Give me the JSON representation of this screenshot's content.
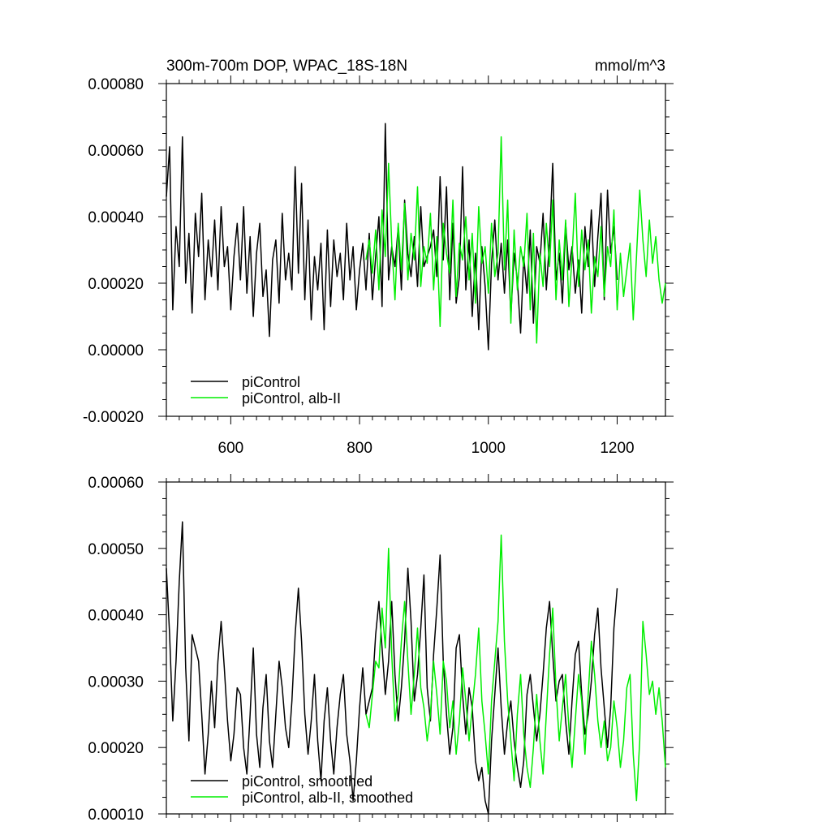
{
  "chart_data": [
    {
      "type": "line",
      "title": "300m-700m DOP, WPAC_18S-18N",
      "units": "mmol/m^3",
      "xlim": [
        500,
        1275
      ],
      "ylim": [
        -0.0002,
        0.0008
      ],
      "xticks": [
        600,
        800,
        1000,
        1200
      ],
      "xtick_labels": [
        "600",
        "800",
        "1000",
        "1200"
      ],
      "yticks": [
        -0.0002,
        0.0,
        0.0002,
        0.0004,
        0.0006,
        0.0008
      ],
      "ytick_labels": [
        "-0.00020",
        "0.00000",
        "0.00020",
        "0.00040",
        "0.00060",
        "0.00080"
      ],
      "legend_position": "bottom-left",
      "grid": false,
      "series": [
        {
          "name": "piControl",
          "color": "#000000",
          "x": [
            500,
            505,
            510,
            515,
            520,
            525,
            530,
            535,
            540,
            545,
            550,
            555,
            560,
            565,
            570,
            575,
            580,
            585,
            590,
            595,
            600,
            605,
            610,
            615,
            620,
            625,
            630,
            635,
            640,
            645,
            650,
            655,
            660,
            665,
            670,
            675,
            680,
            685,
            690,
            695,
            700,
            705,
            710,
            715,
            720,
            725,
            730,
            735,
            740,
            745,
            750,
            755,
            760,
            765,
            770,
            775,
            780,
            785,
            790,
            795,
            800,
            805,
            810,
            815,
            820,
            825,
            830,
            835,
            840,
            845,
            850,
            855,
            860,
            865,
            870,
            875,
            880,
            885,
            890,
            895,
            900,
            905,
            910,
            915,
            920,
            925,
            930,
            935,
            940,
            945,
            950,
            955,
            960,
            965,
            970,
            975,
            980,
            985,
            990,
            995,
            1000,
            1005,
            1010,
            1015,
            1020,
            1025,
            1030,
            1035,
            1040,
            1045,
            1050,
            1055,
            1060,
            1065,
            1070,
            1075,
            1080,
            1085,
            1090,
            1095,
            1100,
            1105,
            1110,
            1115,
            1120,
            1125,
            1130,
            1135,
            1140,
            1145,
            1150,
            1155,
            1160,
            1165,
            1170,
            1175,
            1180,
            1185,
            1190,
            1195,
            1200
          ],
          "y": [
            0.00046,
            0.00061,
            0.00012,
            0.00037,
            0.00025,
            0.00064,
            0.0002,
            0.00035,
            0.00011,
            0.00041,
            0.00028,
            0.00047,
            0.00015,
            0.00033,
            0.00022,
            0.00039,
            0.00018,
            0.00043,
            0.00025,
            0.00031,
            0.00012,
            0.00028,
            0.00038,
            0.00021,
            0.00043,
            0.00017,
            0.00034,
            0.0001,
            0.00029,
            0.00038,
            0.00016,
            0.00024,
            4e-05,
            0.00027,
            0.00033,
            0.00014,
            0.00041,
            0.00021,
            0.00029,
            0.00018,
            0.00055,
            0.00023,
            0.0005,
            0.00015,
            0.00039,
            9e-05,
            0.00028,
            0.00018,
            0.00032,
            6e-05,
            0.00036,
            0.00013,
            0.00033,
            0.00022,
            0.00029,
            0.00015,
            0.00038,
            0.00021,
            0.00031,
            0.00012,
            0.00024,
            0.00032,
            0.00018,
            0.00035,
            0.00015,
            0.00028,
            0.0004,
            0.00013,
            0.00068,
            0.00021,
            0.00031,
            0.00025,
            0.00037,
            0.00018,
            0.00045,
            0.00029,
            0.00022,
            0.00034,
            0.00019,
            0.00043,
            0.00025,
            0.00028,
            0.00031,
            0.00036,
            0.00022,
            0.00052,
            0.00027,
            0.00049,
            0.00015,
            0.00038,
            0.00014,
            0.00022,
            0.00055,
            0.00018,
            0.00033,
            0.0001,
            0.00029,
            6e-05,
            0.00031,
            0.00019,
            0.0,
            0.00026,
            0.00039,
            0.00021,
            0.00032,
            0.00017,
            0.00033,
            0.0001,
            0.00029,
            0.00021,
            5e-05,
            0.00028,
            0.00017,
            0.00036,
            8e-05,
            0.00031,
            0.00026,
            0.00041,
            0.00018,
            0.00033,
            0.00056,
            0.00021,
            0.00029,
            0.00014,
            0.00038,
            0.00024,
            0.00031,
            0.00017,
            0.00027,
            0.00011,
            0.00037,
            0.00025,
            0.00042,
            0.00019,
            0.00034,
            0.00047,
            0.00015,
            0.00048,
            0.00029,
            0.00037,
            0.00021
          ]
        },
        {
          "name": "piControl, alb-II",
          "color": "#00ee00",
          "x": [
            810,
            815,
            820,
            825,
            830,
            835,
            840,
            845,
            850,
            855,
            860,
            865,
            870,
            875,
            880,
            885,
            890,
            895,
            900,
            905,
            910,
            915,
            920,
            925,
            930,
            935,
            940,
            945,
            950,
            955,
            960,
            965,
            970,
            975,
            980,
            985,
            990,
            995,
            1000,
            1005,
            1010,
            1015,
            1020,
            1025,
            1030,
            1035,
            1040,
            1045,
            1050,
            1055,
            1060,
            1065,
            1070,
            1075,
            1080,
            1085,
            1090,
            1095,
            1100,
            1105,
            1110,
            1115,
            1120,
            1125,
            1130,
            1135,
            1140,
            1145,
            1150,
            1155,
            1160,
            1165,
            1170,
            1175,
            1180,
            1185,
            1190,
            1195,
            1200,
            1205,
            1210,
            1215,
            1220,
            1225,
            1230,
            1235,
            1240,
            1245,
            1250,
            1255,
            1260,
            1265,
            1270,
            1275
          ],
          "y": [
            0.00027,
            0.00033,
            0.00023,
            0.00036,
            0.00018,
            0.00042,
            0.00028,
            0.00056,
            0.00032,
            0.00015,
            0.00038,
            0.00024,
            0.00044,
            0.00021,
            0.00035,
            0.00027,
            0.00049,
            0.00019,
            0.00031,
            0.00026,
            0.00041,
            0.00018,
            0.00034,
            7e-05,
            0.00038,
            0.00029,
            0.00023,
            0.00045,
            0.00016,
            0.00032,
            0.00027,
            0.0004,
            0.00021,
            0.00035,
            0.00014,
            0.00043,
            0.00026,
            0.00031,
            0.00017,
            0.00038,
            0.00022,
            0.00029,
            0.00064,
            0.00024,
            0.00045,
            8e-05,
            0.00036,
            0.00018,
            0.00031,
            0.00025,
            0.00041,
            0.00012,
            0.00035,
            2e-05,
            0.00029,
            0.00019,
            0.00038,
            0.00025,
            0.00045,
            0.00015,
            0.00033,
            0.00021,
            0.00039,
            0.00013,
            0.00028,
            0.00047,
            0.00019,
            0.00036,
            0.00024,
            0.00033,
            0.00011,
            0.00028,
            0.00022,
            0.00037,
            0.00016,
            0.00031,
            0.00025,
            0.00042,
            0.00012,
            0.00029,
            0.00016,
            0.00024,
            0.00032,
            9e-05,
            0.00028,
            0.00048,
            0.00033,
            0.00022,
            0.00039,
            0.00026,
            0.00034,
            0.00021,
            0.00014,
            0.0002
          ]
        }
      ]
    },
    {
      "type": "line",
      "xlim": [
        500,
        1275
      ],
      "ylim": [
        0.0001,
        0.0006
      ],
      "xticks": [
        600,
        800,
        1000,
        1200
      ],
      "yticks": [
        0.0001,
        0.0002,
        0.0003,
        0.0004,
        0.0005,
        0.0006
      ],
      "ytick_labels": [
        "0.00010",
        "0.00020",
        "0.00030",
        "0.00040",
        "0.00050",
        "0.00060"
      ],
      "legend_position": "bottom-left",
      "grid": false,
      "series": [
        {
          "name": "piControl, smoothed",
          "color": "#000000",
          "x": [
            500,
            505,
            510,
            515,
            520,
            525,
            530,
            535,
            540,
            545,
            550,
            555,
            560,
            565,
            570,
            575,
            580,
            585,
            590,
            595,
            600,
            605,
            610,
            615,
            620,
            625,
            630,
            635,
            640,
            645,
            650,
            655,
            660,
            665,
            670,
            675,
            680,
            685,
            690,
            695,
            700,
            705,
            710,
            715,
            720,
            725,
            730,
            735,
            740,
            745,
            750,
            755,
            760,
            765,
            770,
            775,
            780,
            785,
            790,
            795,
            800,
            805,
            810,
            815,
            820,
            825,
            830,
            835,
            840,
            845,
            850,
            855,
            860,
            865,
            870,
            875,
            880,
            885,
            890,
            895,
            900,
            905,
            910,
            915,
            920,
            925,
            930,
            935,
            940,
            945,
            950,
            955,
            960,
            965,
            970,
            975,
            980,
            985,
            990,
            995,
            1000,
            1005,
            1010,
            1015,
            1020,
            1025,
            1030,
            1035,
            1040,
            1045,
            1050,
            1055,
            1060,
            1065,
            1070,
            1075,
            1080,
            1085,
            1090,
            1095,
            1100,
            1105,
            1110,
            1115,
            1120,
            1125,
            1130,
            1135,
            1140,
            1145,
            1150,
            1155,
            1160,
            1165,
            1170,
            1175,
            1180,
            1185,
            1190,
            1195,
            1200
          ],
          "y": [
            0.00047,
            0.00037,
            0.00024,
            0.00033,
            0.00045,
            0.00054,
            0.00032,
            0.00021,
            0.00037,
            0.00035,
            0.00033,
            0.00025,
            0.00016,
            0.00022,
            0.0003,
            0.00023,
            0.00033,
            0.00039,
            0.00032,
            0.00024,
            0.00018,
            0.00022,
            0.00029,
            0.00028,
            0.0002,
            0.00016,
            0.00025,
            0.00035,
            0.00022,
            0.00017,
            0.00026,
            0.00031,
            0.00021,
            0.00017,
            0.00025,
            0.00033,
            0.00029,
            0.00023,
            0.0002,
            0.00027,
            0.00037,
            0.00044,
            0.00036,
            0.00025,
            0.00019,
            0.00024,
            0.00031,
            0.00021,
            0.00015,
            0.00024,
            0.00029,
            0.00021,
            0.00016,
            0.00023,
            0.00028,
            0.00031,
            0.00022,
            0.00018,
            0.00012,
            0.00018,
            0.00026,
            0.00032,
            0.00025,
            0.00027,
            0.00029,
            0.00037,
            0.00042,
            0.00035,
            0.00028,
            0.00033,
            0.00042,
            0.00031,
            0.00024,
            0.00029,
            0.00036,
            0.00047,
            0.00039,
            0.00027,
            0.00031,
            0.00038,
            0.00046,
            0.00029,
            0.00024,
            0.00034,
            0.00041,
            0.00049,
            0.00033,
            0.00025,
            0.00019,
            0.00023,
            0.00035,
            0.00037,
            0.00028,
            0.00022,
            0.00029,
            0.00026,
            0.00018,
            0.00015,
            0.00017,
            0.00012,
            0.0001,
            0.00021,
            0.00028,
            0.00035,
            0.00026,
            0.00019,
            0.00024,
            0.00027,
            0.00021,
            0.00017,
            0.00014,
            0.00018,
            0.00028,
            0.00031,
            0.00026,
            0.00021,
            0.00025,
            0.00031,
            0.00038,
            0.00042,
            0.00034,
            0.00027,
            0.0003,
            0.00031,
            0.00024,
            0.00019,
            0.00027,
            0.00034,
            0.00036,
            0.00028,
            0.00022,
            0.00025,
            0.0003,
            0.00037,
            0.00041,
            0.00032,
            0.00026,
            0.0002,
            0.00026,
            0.00038,
            0.00044
          ]
        },
        {
          "name": "piControl, alb-II, smoothed",
          "color": "#00ee00",
          "x": [
            810,
            815,
            820,
            825,
            830,
            835,
            840,
            845,
            850,
            855,
            860,
            865,
            870,
            875,
            880,
            885,
            890,
            895,
            900,
            905,
            910,
            915,
            920,
            925,
            930,
            935,
            940,
            945,
            950,
            955,
            960,
            965,
            970,
            975,
            980,
            985,
            990,
            995,
            1000,
            1005,
            1010,
            1015,
            1020,
            1025,
            1030,
            1035,
            1040,
            1045,
            1050,
            1055,
            1060,
            1065,
            1070,
            1075,
            1080,
            1085,
            1090,
            1095,
            1100,
            1105,
            1110,
            1115,
            1120,
            1125,
            1130,
            1135,
            1140,
            1145,
            1150,
            1155,
            1160,
            1165,
            1170,
            1175,
            1180,
            1185,
            1190,
            1195,
            1200,
            1205,
            1210,
            1215,
            1220,
            1225,
            1230,
            1235,
            1240,
            1245,
            1250,
            1255,
            1260,
            1265,
            1270,
            1275
          ],
          "y": [
            0.00025,
            0.00023,
            0.00028,
            0.00033,
            0.00032,
            0.00041,
            0.00035,
            0.0005,
            0.00034,
            0.00024,
            0.00028,
            0.00036,
            0.00042,
            0.00033,
            0.00025,
            0.00031,
            0.00038,
            0.00029,
            0.00026,
            0.00021,
            0.00025,
            0.00033,
            0.00028,
            0.00022,
            0.00033,
            0.0003,
            0.00023,
            0.00027,
            0.00019,
            0.00024,
            0.00032,
            0.00027,
            0.00021,
            0.00026,
            0.00031,
            0.00038,
            0.00027,
            0.00022,
            0.00016,
            0.00027,
            0.00033,
            0.00039,
            0.00052,
            0.00036,
            0.00027,
            0.00021,
            0.00015,
            0.00025,
            0.00031,
            0.00022,
            0.00017,
            0.00014,
            0.0002,
            0.00028,
            0.00021,
            0.00016,
            0.00025,
            0.00034,
            0.00041,
            0.00029,
            0.00021,
            0.00026,
            0.00031,
            0.00023,
            0.00017,
            0.00024,
            0.00031,
            0.00027,
            0.00019,
            0.00028,
            0.00036,
            0.00031,
            0.00024,
            0.0002,
            0.00024,
            0.00018,
            0.0002,
            0.00027,
            0.00023,
            0.00017,
            0.00021,
            0.00029,
            0.00031,
            0.00019,
            0.00012,
            0.00021,
            0.00039,
            0.00034,
            0.00028,
            0.0003,
            0.00025,
            0.00029,
            0.00024,
            0.00017
          ]
        }
      ]
    }
  ]
}
